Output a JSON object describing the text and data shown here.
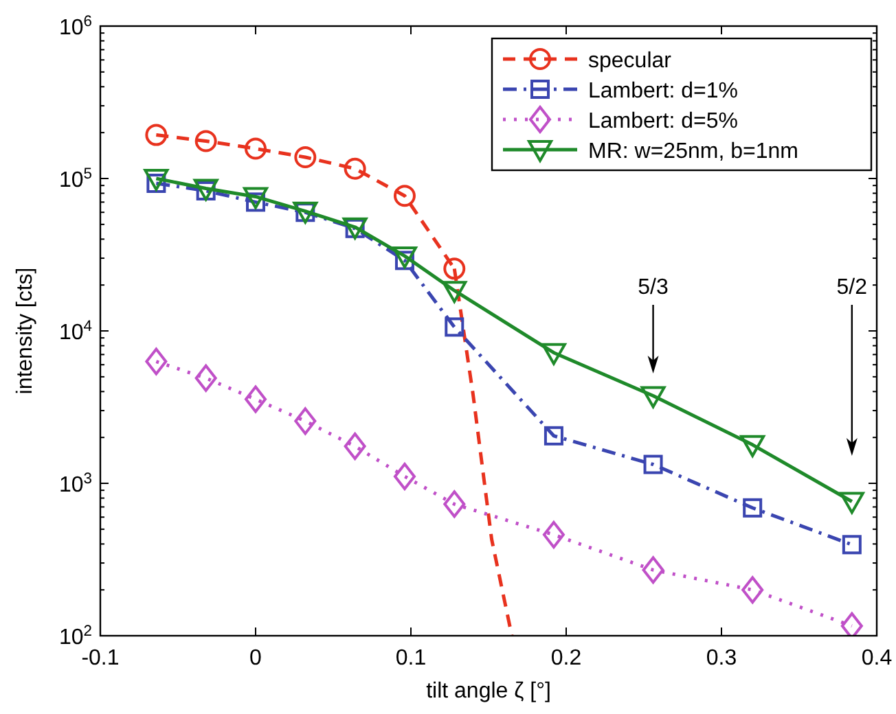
{
  "chart_data": {
    "type": "line",
    "xlabel": "tilt angle ζ [°]",
    "ylabel": "intensity [cts]",
    "log": "y",
    "xlim": [
      -0.1,
      0.4
    ],
    "xticks": [
      -0.1,
      0,
      0.1,
      0.2,
      0.3,
      0.4
    ],
    "ylim": [
      100,
      1000000
    ],
    "yticks": [
      {
        "value": 100,
        "label": "10$^{2}$"
      },
      {
        "value": 1000,
        "label": "10$^{3}$"
      },
      {
        "value": 10000,
        "label": "10$^{4}$"
      },
      {
        "value": 100000,
        "label": "10$^{5}$"
      },
      {
        "value": 1000000,
        "label": "10$^{6}$"
      }
    ],
    "grid": false,
    "legend": "top right",
    "x": [
      -0.064,
      -0.032,
      0,
      0.032,
      0.064,
      0.096,
      0.128,
      0.192,
      0.256,
      0.32,
      0.384
    ],
    "series": [
      {
        "name": "specular",
        "color": "#e8321e",
        "marker": "circle",
        "line_style": "dashed",
        "x": [
          -0.064,
          -0.032,
          0,
          0.032,
          0.064,
          0.096,
          0.128
        ],
        "values": [
          193000,
          176000,
          157000,
          138000,
          116000,
          77000,
          25600
        ]
      },
      {
        "color": "#e8321e",
        "marker": "none",
        "line_style": "dashed",
        "x": [
          0.128,
          0.14,
          0.152,
          0.165
        ],
        "values": [
          25600,
          3850,
          430,
          100
        ]
      },
      {
        "name": "Lambert: d=1%",
        "color": "#3a45b0",
        "marker": "square",
        "line_style": "dashdot",
        "values": [
          93000,
          83000,
          70000,
          60000,
          47000,
          29000,
          10600,
          2050,
          1330,
          690,
          396
        ]
      },
      {
        "name": "Lambert: d=5%",
        "color": "#c050c8",
        "marker": "diamond",
        "line_style": "dotted",
        "values": [
          6300,
          4900,
          3560,
          2560,
          1750,
          1110,
          730,
          460,
          270,
          200,
          116
        ]
      },
      {
        "name": "MR: w=25nm, b=1nm",
        "color": "#1f8a2a",
        "marker": "triangle",
        "line_style": "solid",
        "values": [
          100000,
          86000,
          76000,
          61000,
          48000,
          31000,
          18400,
          7200,
          3750,
          1790,
          760
        ]
      }
    ],
    "annotations": [
      "5/3",
      "5/2"
    ]
  }
}
